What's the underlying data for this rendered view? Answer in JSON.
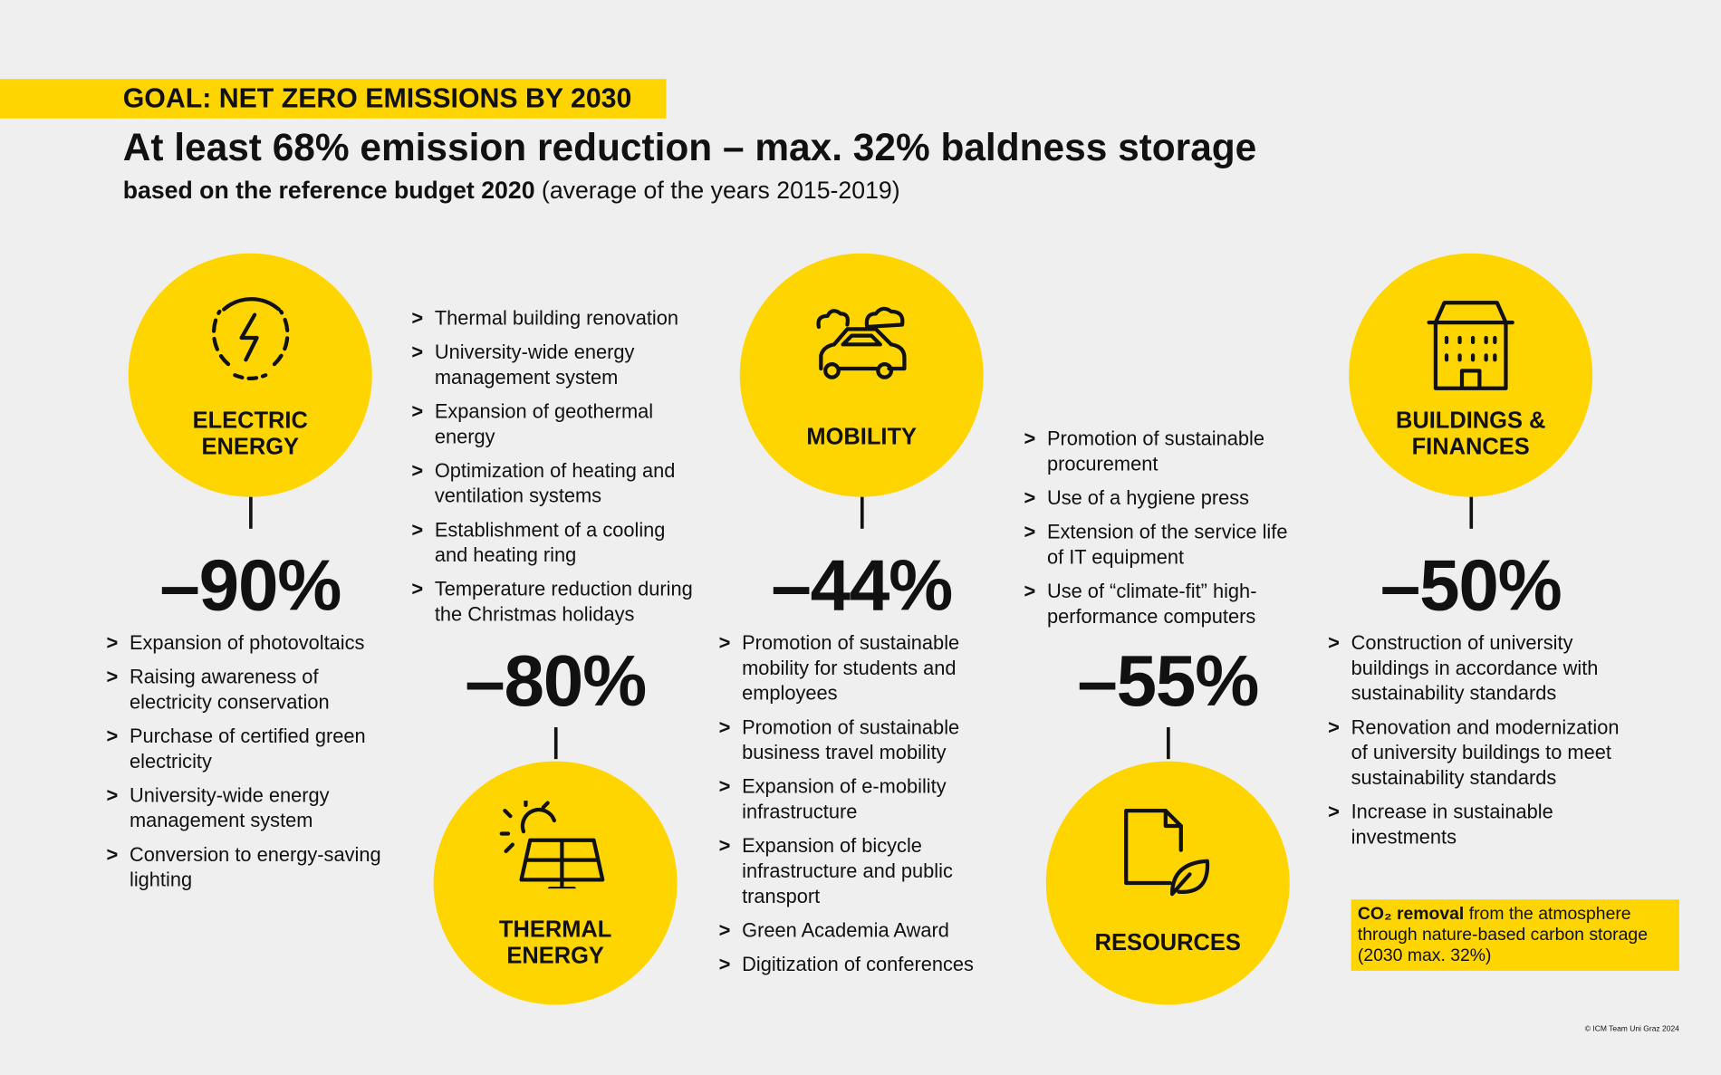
{
  "header": {
    "goal": "GOAL: NET ZERO EMISSIONS BY 2030",
    "title": "At least 68% emission reduction – max. 32% baldness storage",
    "subtitle_bold": "based on the reference budget 2020",
    "subtitle_rest": "(average of the years 2015-2019)"
  },
  "sections": [
    {
      "label": "ELECTRIC ENERGY",
      "reduction": "–90%",
      "measures": [
        "Expansion of photovoltaics",
        "Raising awareness of electricity conservation",
        "Purchase of certified green electricity",
        "University-wide energy management system",
        "Conversion to energy-saving lighting"
      ]
    },
    {
      "label": "THERMAL ENERGY",
      "reduction": "–80%",
      "measures": [
        "Thermal building renovation",
        "University-wide energy management system",
        "Expansion of geothermal energy",
        "Optimization of heating and ventilation systems",
        "Establishment of a cooling and heating ring",
        "Temperature reduction during the Christmas holidays"
      ]
    },
    {
      "label": "MOBILITY",
      "reduction": "–44%",
      "measures": [
        "Promotion of sustainable mobility for students and employees",
        "Promotion of sustainable business travel mobility",
        "Expansion of e-mobility infrastructure",
        "Expansion of bicycle infrastructure and public transport",
        "Green Academia Award",
        "Digitization of conferences"
      ]
    },
    {
      "label": "RESOURCES",
      "reduction": "–55%",
      "measures": [
        "Promotion of sustainable procurement",
        "Use of a hygiene press",
        "Extension of the service life of IT equipment",
        "Use of “climate-fit” high-performance computers"
      ]
    },
    {
      "label": "BUILDINGS & FINANCES",
      "reduction": "–50%",
      "measures": [
        "Construction of university buildings in accordance with sustainability standards",
        "Renovation and modernization of university buildings to meet sustainability standards",
        "Increase in sustainable investments"
      ]
    }
  ],
  "note": {
    "bold": "CO₂ removal",
    "text": "from the atmosphere through nature-based carbon storage (2030 max. 32%)"
  },
  "credit": "© ICM Team Uni Graz 2024"
}
